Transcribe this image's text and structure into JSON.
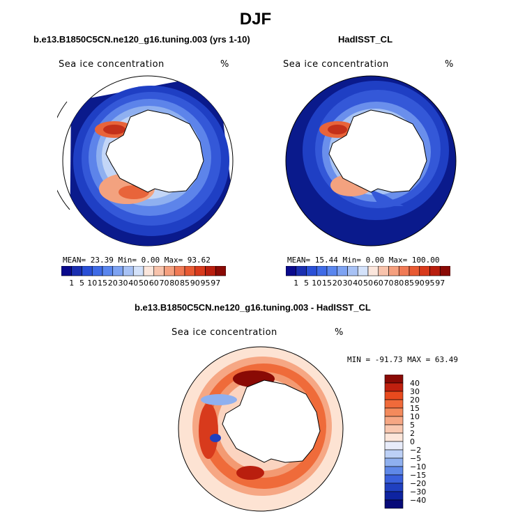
{
  "main_title": "DJF",
  "panels": {
    "model": {
      "title": "b.e13.B1850C5CN.ne120_g16.tuning.003 (yrs 1-10)",
      "variable": "Sea ice concentration",
      "units": "%",
      "stats": "MEAN=  23.39  Min=   0.00  Max=  93.62"
    },
    "obs": {
      "title": "HadISST_CL",
      "variable": "Sea ice concentration",
      "units": "%",
      "stats": "MEAN=  15.44  Min=   0.00  Max= 100.00"
    },
    "diff": {
      "title": "b.e13.B1850C5CN.ne120_g16.tuning.003 - HadISST_CL",
      "variable": "Sea ice concentration",
      "units": "%",
      "stats": "MIN = -91.73 MAX =  63.49"
    }
  },
  "colorbar_abs": {
    "labels": [
      "1",
      "5",
      "10",
      "15",
      "20",
      "30",
      "40",
      "50",
      "60",
      "70",
      "80",
      "85",
      "90",
      "95",
      "97"
    ],
    "colors": [
      "#0a0a8c",
      "#1a2fb0",
      "#2a50d6",
      "#3f6be6",
      "#5a86ee",
      "#7ea3f2",
      "#a8c2f5",
      "#d4e2fa",
      "#fbe6dc",
      "#f8c3ac",
      "#f5a07f",
      "#f07a55",
      "#e85a33",
      "#d83a1c",
      "#b91e0e",
      "#8a0a05"
    ]
  },
  "colorbar_diff": {
    "labels": [
      "40",
      "30",
      "20",
      "15",
      "10",
      "5",
      "2",
      "0",
      "−2",
      "−5",
      "−10",
      "−15",
      "−20",
      "−30",
      "−40"
    ],
    "colors": [
      "#8a0a05",
      "#c0200f",
      "#e84a1e",
      "#f06a3a",
      "#f38a5c",
      "#f6a784",
      "#f9c8b0",
      "#fce6da",
      "#e8ecfa",
      "#bcd0f6",
      "#8fb0ef",
      "#5f88e8",
      "#3a60dc",
      "#2040c0",
      "#0e23a0",
      "#070a78"
    ]
  },
  "map_colors": {
    "ocean_model": "#0a1a8c",
    "ocean_obs": "#0a1a8c",
    "diff_base": "#fde3d3",
    "land": "#ffffff"
  }
}
